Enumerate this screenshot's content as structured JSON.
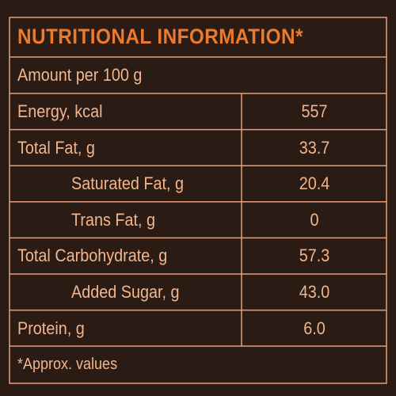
{
  "title": "NUTRITIONAL INFORMATION*",
  "subtitle": "Amount per 100 g",
  "table": {
    "rows": [
      [
        "Energy, kcal",
        "557"
      ],
      [
        "Total Fat, g",
        "33.7"
      ],
      [
        "Saturated Fat, g",
        "20.4"
      ],
      [
        "Trans Fat, g",
        "0"
      ],
      [
        "Total Carbohydrate, g",
        "57.3"
      ],
      [
        "Added Sugar, g",
        "43.0"
      ],
      [
        "Protein, g",
        "6.0"
      ]
    ]
  },
  "footnote": "*Approx. values"
}
